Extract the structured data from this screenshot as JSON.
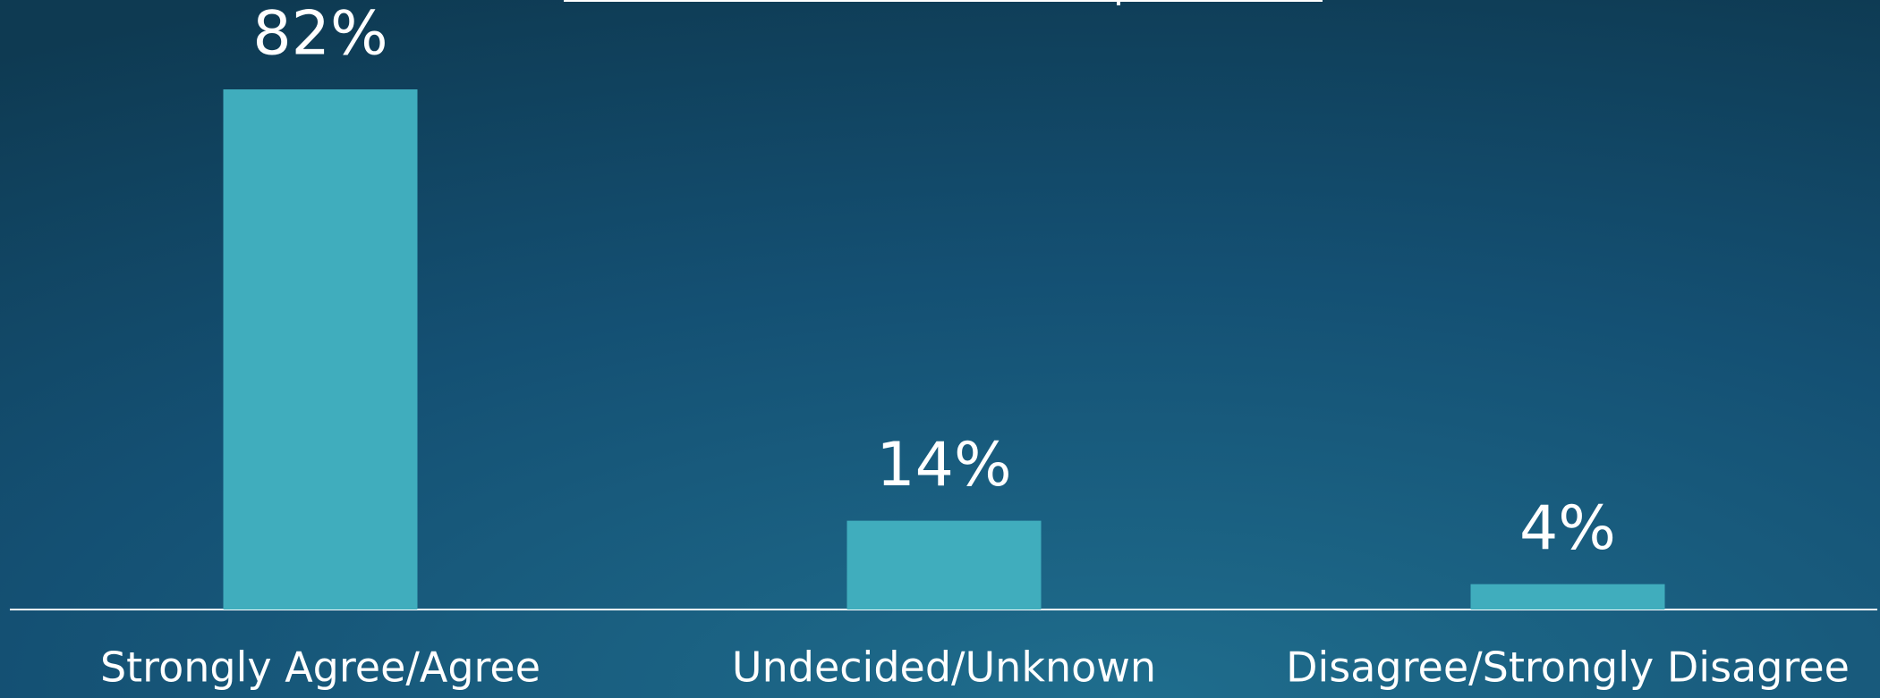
{
  "chart_data": {
    "type": "bar",
    "categories": [
      "Strongly Agree/Agree",
      "Undecided/Unknown",
      "Disagree/Strongly Disagree"
    ],
    "values": [
      82,
      14,
      4
    ],
    "value_labels": [
      "82%",
      "14%",
      "4%"
    ],
    "color": "#40adbd"
  }
}
